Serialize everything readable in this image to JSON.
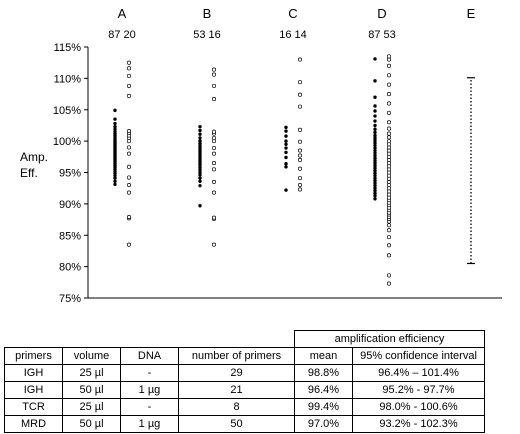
{
  "chart_data": {
    "type": "scatter",
    "ylabel": [
      "Amp.",
      "Eff."
    ],
    "ylim": [
      75,
      115
    ],
    "yticks": [
      "75%",
      "80%",
      "85%",
      "90%",
      "95%",
      "100%",
      "105%",
      "110%",
      "115%"
    ],
    "grid": false,
    "groups": [
      {
        "label": "A",
        "counts": "87 20",
        "filled": [
          93.1,
          93.6,
          94.1,
          94.5,
          94.9,
          95.2,
          95.5,
          95.8,
          96.1,
          96.4,
          96.7,
          96.9,
          97.1,
          97.3,
          97.5,
          97.7,
          97.9,
          98.1,
          98.3,
          98.5,
          98.7,
          98.9,
          99.1,
          99.3,
          99.5,
          99.7,
          99.9,
          100.1,
          100.3,
          100.6,
          100.9,
          101.2,
          101.5,
          101.9,
          102.3,
          102.8,
          103.5,
          104.9
        ],
        "open": [
          83.5,
          87.7,
          87.9,
          91.8,
          93.0,
          94.2,
          95.9,
          98.0,
          99.0,
          100.0,
          100.5,
          100.9,
          101.3,
          101.6,
          107.2,
          108.8,
          110.4,
          111.6,
          112.5
        ]
      },
      {
        "label": "B",
        "counts": "53 16",
        "filled": [
          89.7,
          92.9,
          93.6,
          94.1,
          94.6,
          95.0,
          95.4,
          95.8,
          96.2,
          96.5,
          96.8,
          97.1,
          97.4,
          97.7,
          98.0,
          98.3,
          98.6,
          98.9,
          99.2,
          99.6,
          100.0,
          100.5,
          101.1,
          101.7,
          102.3
        ],
        "open": [
          83.5,
          87.6,
          87.8,
          91.8,
          93.5,
          95.5,
          96.5,
          98.0,
          98.9,
          100.0,
          100.5,
          101.2,
          101.5,
          106.7,
          108.8,
          110.6,
          111.4
        ]
      },
      {
        "label": "C",
        "counts": "16 14",
        "filled": [
          92.2,
          95.9,
          96.4,
          97.4,
          98.2,
          98.9,
          99.5,
          100.0,
          100.8,
          101.6,
          102.2
        ],
        "open": [
          92.3,
          93.0,
          94.1,
          95.6,
          97.0,
          97.7,
          98.5,
          99.9,
          101.8,
          105.5,
          107.4,
          109.4,
          113.0
        ]
      },
      {
        "label": "D",
        "counts": "87 53",
        "filled": [
          90.8,
          91.3,
          91.7,
          92.1,
          92.5,
          92.9,
          93.3,
          93.7,
          94.1,
          94.5,
          94.9,
          95.3,
          95.7,
          96.1,
          96.5,
          96.9,
          97.3,
          97.7,
          98.1,
          98.5,
          98.9,
          99.3,
          99.7,
          100.1,
          100.5,
          100.9,
          101.4,
          101.9,
          102.5,
          103.2,
          104.0,
          104.8,
          105.6,
          107.0,
          109.6,
          113.1
        ],
        "open": [
          77.3,
          78.6,
          81.8,
          83.4,
          84.7,
          85.8,
          86.6,
          87.2,
          87.6,
          87.9,
          88.3,
          88.6,
          89.0,
          89.4,
          89.8,
          90.2,
          90.6,
          91.0,
          91.5,
          92.0,
          92.5,
          93.0,
          93.5,
          94.0,
          94.5,
          95.0,
          95.5,
          96.0,
          96.5,
          97.0,
          97.5,
          98.0,
          98.5,
          99.0,
          99.5,
          100.0,
          100.6,
          101.2,
          102.0,
          103.0,
          104.5,
          106.0,
          107.5,
          109.0,
          110.5,
          112.0,
          113.0,
          113.5
        ]
      },
      {
        "label": "E",
        "counts": "",
        "filled": [],
        "open": [],
        "range": [
          80.5,
          110.1
        ]
      }
    ]
  },
  "table": {
    "super_header": "amplification efficiency",
    "headers": [
      "primers",
      "volume",
      "DNA",
      "number of primers",
      "mean",
      "95% confidence interval"
    ],
    "rows": [
      [
        "IGH",
        "25 µl",
        "-",
        "29",
        "98.8%",
        "96.4% – 101.4%"
      ],
      [
        "IGH",
        "50 µl",
        "1 µg",
        "21",
        "96.4%",
        "95.2% - 97.7%"
      ],
      [
        "TCR",
        "25 µl",
        "-",
        "8",
        "99.4%",
        "98.0% - 100.6%"
      ],
      [
        "MRD",
        "50 µl",
        "1 µg",
        "50",
        "97.0%",
        "93.2% - 102.3%"
      ]
    ]
  }
}
